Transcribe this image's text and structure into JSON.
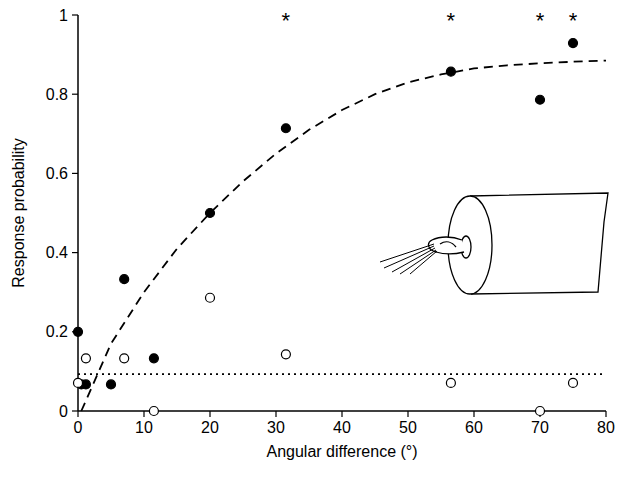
{
  "chart_data": {
    "type": "scatter",
    "xlabel": "Angular difference (°)",
    "ylabel": "Response probability",
    "xlim": [
      0,
      80
    ],
    "ylim": [
      0,
      1
    ],
    "xticks": [
      0,
      10,
      20,
      30,
      40,
      50,
      60,
      70,
      80
    ],
    "yticks": [
      0,
      0.2,
      0.4,
      0.6,
      0.8,
      1
    ],
    "grid": false,
    "series": [
      {
        "type": "scatter",
        "marker": "filled_circle",
        "color": "#000000",
        "x": [
          0,
          0.5,
          1.2,
          5,
          7,
          11.5,
          20,
          31.5,
          56.5,
          70,
          75
        ],
        "values": [
          0.2,
          0.067,
          0.067,
          0.067,
          0.333,
          0.133,
          0.5,
          0.714,
          0.857,
          0.786,
          0.929
        ]
      },
      {
        "type": "scatter",
        "marker": "open_circle",
        "color": "#000000",
        "x": [
          0,
          1.2,
          7,
          11.5,
          20,
          31.5,
          56.5,
          70,
          75
        ],
        "values": [
          0.071,
          0.133,
          0.133,
          0,
          0.286,
          0.143,
          0.071,
          0,
          0.071
        ]
      },
      {
        "type": "line",
        "line_style": "dashed",
        "color": "#000000",
        "x": [
          0.5,
          5,
          10,
          15,
          20,
          25,
          30,
          35,
          40,
          45,
          50,
          55,
          60,
          65,
          70,
          75,
          80
        ],
        "values": [
          0,
          0.17,
          0.3,
          0.41,
          0.5,
          0.58,
          0.65,
          0.71,
          0.76,
          0.8,
          0.83,
          0.85,
          0.865,
          0.873,
          0.878,
          0.882,
          0.885
        ]
      },
      {
        "type": "line",
        "line_style": "dotted",
        "color": "#000000",
        "x": [
          0,
          80
        ],
        "values": [
          0.093,
          0.093
        ]
      }
    ],
    "annotations": [
      {
        "text": "*",
        "x": 31.5
      },
      {
        "text": "*",
        "x": 56.5
      },
      {
        "text": "*",
        "x": 70
      },
      {
        "text": "*",
        "x": 75
      }
    ]
  }
}
